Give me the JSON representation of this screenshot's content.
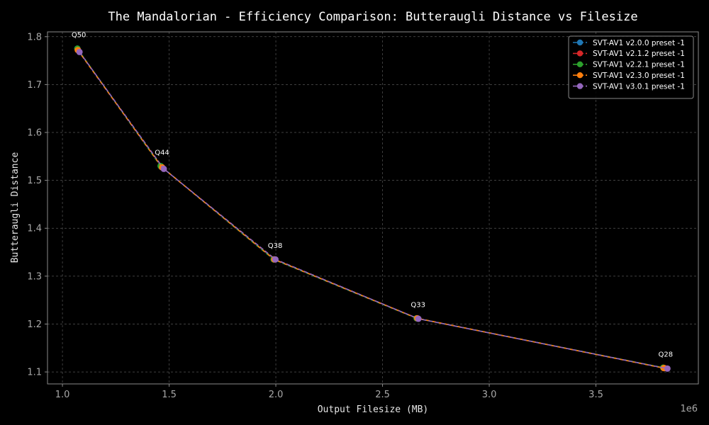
{
  "chart_data": {
    "type": "line",
    "title": "The Mandalorian - Efficiency Comparison: Butteraugli Distance vs Filesize",
    "xlabel": "Output Filesize (MB)",
    "ylabel": "Butteraugli Distance",
    "x_offset_label": "1e6",
    "xlim": [
      930000,
      3980000
    ],
    "ylim": [
      1.075,
      1.81
    ],
    "xticks": [
      1000000,
      1500000,
      2000000,
      2500000,
      3000000,
      3500000
    ],
    "xtick_labels": [
      "1.0",
      "1.5",
      "2.0",
      "2.5",
      "3.0",
      "3.5"
    ],
    "yticks": [
      1.1,
      1.2,
      1.3,
      1.4,
      1.5,
      1.6,
      1.7,
      1.8
    ],
    "ytick_labels": [
      "1.1",
      "1.2",
      "1.3",
      "1.4",
      "1.5",
      "1.6",
      "1.7",
      "1.8"
    ],
    "grid": true,
    "legend_position": "top-right",
    "quality_labels": [
      {
        "text": "Q50",
        "x": 1070000,
        "y": 1.775
      },
      {
        "text": "Q44",
        "x": 1460000,
        "y": 1.53
      },
      {
        "text": "Q38",
        "x": 1990000,
        "y": 1.335
      },
      {
        "text": "Q33",
        "x": 2660000,
        "y": 1.212
      },
      {
        "text": "Q28",
        "x": 3820000,
        "y": 1.108
      }
    ],
    "series": [
      {
        "name": "SVT-AV1 v2.0.0 preset -1",
        "color": "#1f77b4",
        "x": [
          1070000,
          1462000,
          1990000,
          2660000,
          3820000
        ],
        "y": [
          1.775,
          1.529,
          1.335,
          1.212,
          1.108
        ]
      },
      {
        "name": "SVT-AV1 v2.1.2 preset -1",
        "color": "#d62728",
        "x": [
          1072000,
          1465000,
          1992000,
          2662000,
          3822000
        ],
        "y": [
          1.773,
          1.528,
          1.335,
          1.212,
          1.108
        ]
      },
      {
        "name": "SVT-AV1 v2.2.1 preset -1",
        "color": "#2ca02c",
        "x": [
          1070000,
          1460000,
          1990000,
          2660000,
          3815000
        ],
        "y": [
          1.775,
          1.53,
          1.335,
          1.212,
          1.109
        ]
      },
      {
        "name": "SVT-AV1 v2.3.0 preset -1",
        "color": "#ff7f0e",
        "x": [
          1072000,
          1467000,
          1993000,
          2663000,
          3818000
        ],
        "y": [
          1.772,
          1.527,
          1.335,
          1.212,
          1.108
        ]
      },
      {
        "name": "SVT-AV1 v3.0.1 preset -1",
        "color": "#9467bd",
        "x": [
          1080000,
          1475000,
          1998000,
          2668000,
          3835000
        ],
        "y": [
          1.768,
          1.524,
          1.335,
          1.211,
          1.107
        ]
      }
    ]
  }
}
